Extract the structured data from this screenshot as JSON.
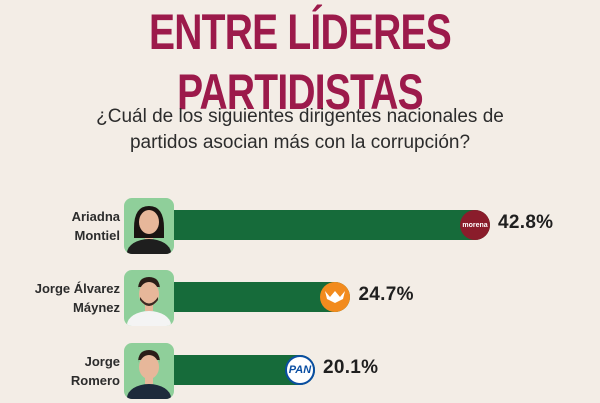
{
  "header": {
    "title": "ENTRE LÍDERES PARTIDISTAS",
    "question": "¿Cuál de los siguientes dirigentes nacionales de partidos asocian más con la corrupción?"
  },
  "colors": {
    "title": "#9c1a4b",
    "bar": "#166b3a",
    "photo_bg": "#8fcf9a",
    "background": "#f3ede6"
  },
  "chart_data": {
    "type": "bar",
    "title": "ENTRE LÍDERES PARTIDISTAS",
    "subtitle": "¿Cuál de los siguientes dirigentes nacionales de partidos asocian más con la corrupción?",
    "orientation": "horizontal",
    "categories": [
      "Ariadna Montiel",
      "Jorge Álvarez Máynez",
      "Jorge Romero"
    ],
    "values": [
      42.8,
      24.7,
      20.1
    ],
    "labels": [
      "42.8%",
      "24.7%",
      "20.1%"
    ],
    "unit": "%",
    "items": [
      {
        "name_line1": "Ariadna",
        "name_line2": "Montiel",
        "value": 42.8,
        "label": "42.8%",
        "party_logo": "morena-logo",
        "party_text": "morena",
        "logo_color": "#8a1c2b",
        "logo_text_color": "#ffffff"
      },
      {
        "name_line1": "Jorge Álvarez",
        "name_line2": "Máynez",
        "value": 24.7,
        "label": "24.7%",
        "party_logo": "movimiento-ciudadano-logo",
        "party_text": "",
        "logo_color": "#f28b1e",
        "logo_text_color": "#ffffff"
      },
      {
        "name_line1": "Jorge",
        "name_line2": "Romero",
        "value": 20.1,
        "label": "20.1%",
        "party_logo": "pan-logo",
        "party_text": "PAN",
        "logo_color": "#ffffff",
        "logo_text_color": "#0a4ea2"
      }
    ]
  }
}
